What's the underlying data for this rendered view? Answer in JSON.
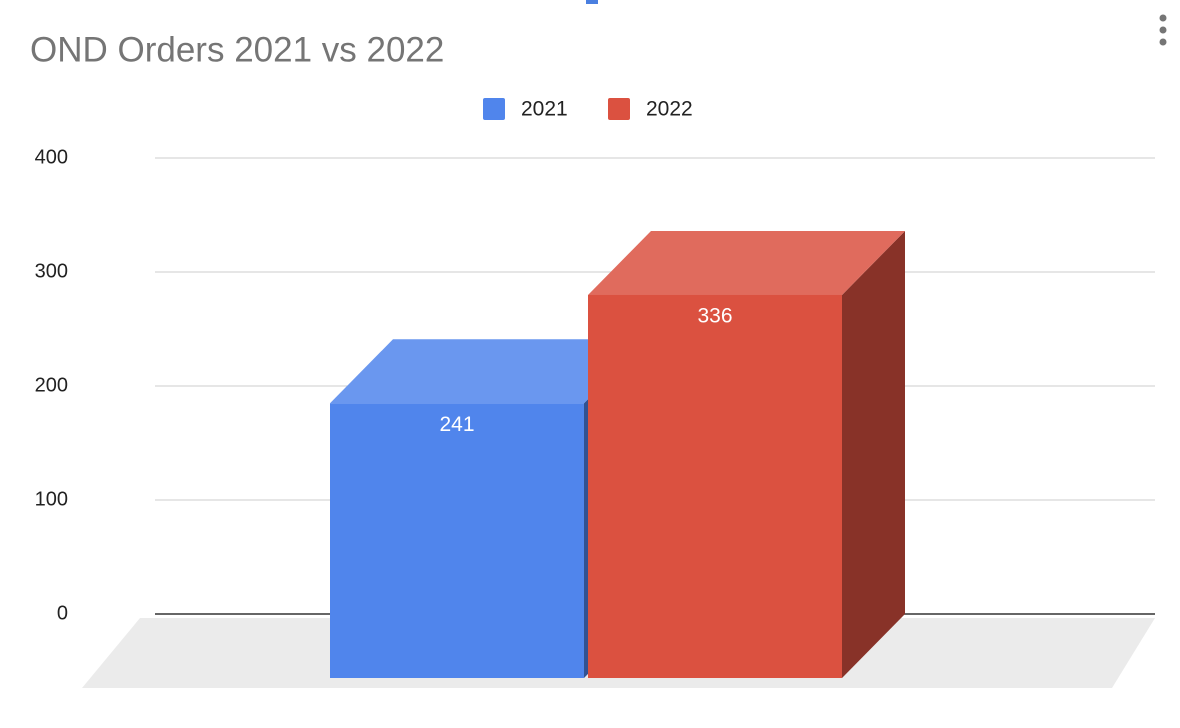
{
  "chart_data": {
    "type": "bar3d",
    "title": "OND Orders 2021 vs 2022",
    "categories": [
      null
    ],
    "series": [
      {
        "name": "2021",
        "color": "#5085ec",
        "values": [
          241
        ]
      },
      {
        "name": "2022",
        "color": "#db5140",
        "values": [
          336
        ]
      }
    ],
    "ylim": [
      0,
      400
    ],
    "yticks": [
      0,
      100,
      200,
      300,
      400
    ],
    "grid": true,
    "legend": "top",
    "data_labels": true
  }
}
